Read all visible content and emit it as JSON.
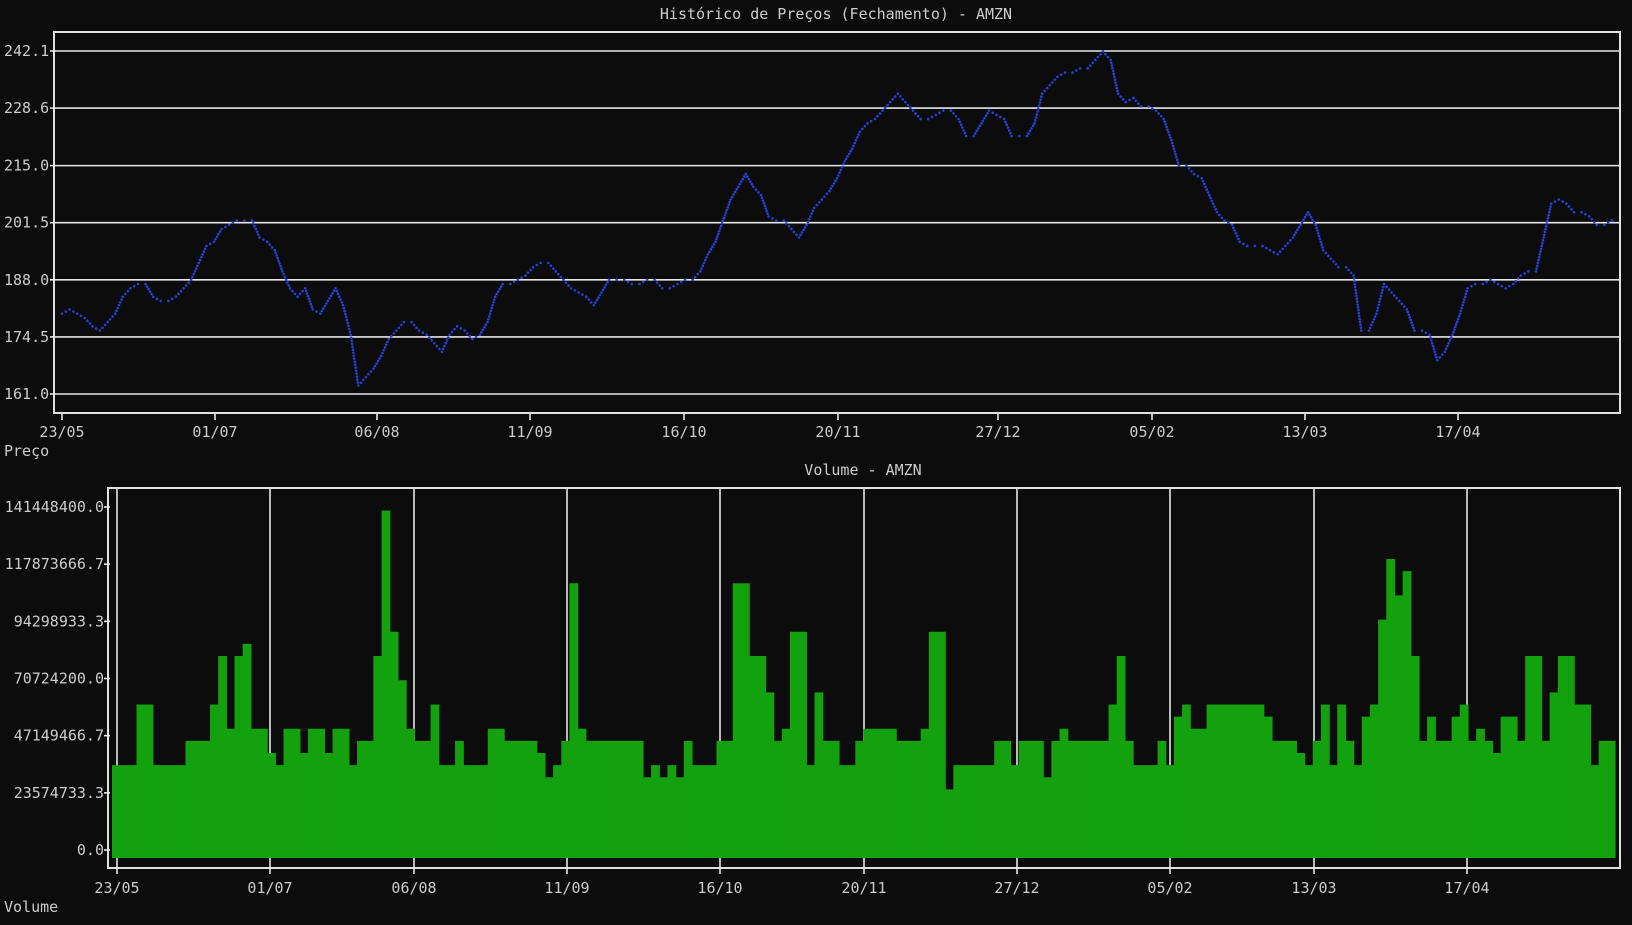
{
  "chart_data": [
    {
      "type": "line",
      "title": "Histórico de Preços (Fechamento) - AMZN",
      "ylabel": "Preço",
      "ylim": [
        161.0,
        242.1
      ],
      "y_ticks": [
        "242.1",
        "228.6",
        "215.0",
        "201.5",
        "188.0",
        "174.5",
        "161.0"
      ],
      "x_ticks": [
        "23/05",
        "01/07",
        "06/08",
        "11/09",
        "16/10",
        "20/11",
        "27/12",
        "05/02",
        "13/03",
        "17/04"
      ],
      "grid": "horizontal",
      "series": [
        {
          "color": "#2a3fd6",
          "values": [
            180,
            181,
            180,
            179,
            177,
            176,
            178,
            180,
            184,
            186,
            187,
            187,
            184,
            183,
            183,
            184,
            186,
            188,
            192,
            196,
            197,
            200,
            201,
            202,
            202,
            202,
            198,
            197,
            195,
            190,
            186,
            184,
            186,
            181,
            180,
            183,
            186,
            182,
            175,
            163,
            165,
            167,
            170,
            174,
            176,
            178,
            178,
            176,
            175,
            173,
            171,
            175,
            177,
            176,
            174,
            175,
            178,
            184,
            187,
            187,
            188,
            189,
            191,
            192,
            192,
            190,
            188,
            186,
            185,
            184,
            182,
            185,
            188,
            188,
            188,
            187,
            187,
            188,
            188,
            186,
            186,
            187,
            188,
            188,
            190,
            194,
            197,
            202,
            207,
            210,
            213,
            210,
            208,
            203,
            202,
            202,
            200,
            198,
            201,
            205,
            207,
            209,
            212,
            216,
            219,
            223,
            225,
            226,
            228,
            230,
            232,
            230,
            228,
            226,
            226,
            227,
            228,
            228,
            226,
            222,
            222,
            225,
            228,
            227,
            226,
            222,
            222,
            222,
            225,
            232,
            234,
            236,
            237,
            237,
            238,
            238,
            240,
            242,
            240,
            232,
            230,
            231,
            229,
            229,
            228,
            226,
            221,
            215,
            215,
            213,
            212,
            208,
            204,
            202,
            201,
            197,
            196,
            196,
            196,
            195,
            194,
            196,
            198,
            201,
            204,
            201,
            195,
            193,
            191,
            191,
            189,
            176,
            176,
            180,
            187,
            185,
            183,
            181,
            176,
            176,
            175,
            169,
            171,
            175,
            180,
            186,
            187,
            187,
            188,
            187,
            186,
            187,
            189,
            190,
            190,
            198,
            206,
            207,
            206,
            204,
            204,
            203,
            201,
            201,
            202
          ]
        }
      ]
    },
    {
      "type": "bar",
      "title": "Volume - AMZN",
      "ylabel": "Volume",
      "ylim": [
        0,
        141448400
      ],
      "y_ticks": [
        "141448400.0",
        "117873666.7",
        "94298933.3",
        "70724200.0",
        "47149466.7",
        "23574733.3",
        "0.0"
      ],
      "x_ticks": [
        "23/05",
        "01/07",
        "06/08",
        "11/09",
        "16/10",
        "20/11",
        "27/12",
        "05/02",
        "13/03",
        "17/04"
      ],
      "grid": "vertical",
      "series": [
        {
          "color": "#13a10e",
          "values": [
            35,
            35,
            35,
            60,
            60,
            35,
            35,
            35,
            35,
            45,
            45,
            45,
            60,
            80,
            50,
            80,
            85,
            50,
            50,
            40,
            35,
            50,
            50,
            40,
            50,
            50,
            40,
            50,
            50,
            35,
            45,
            45,
            80,
            140,
            90,
            70,
            50,
            45,
            45,
            60,
            35,
            35,
            45,
            35,
            35,
            35,
            50,
            50,
            45,
            45,
            45,
            45,
            40,
            30,
            35,
            45,
            110,
            50,
            45,
            45,
            45,
            45,
            45,
            45,
            45,
            30,
            35,
            30,
            35,
            30,
            45,
            35,
            35,
            35,
            45,
            45,
            110,
            110,
            80,
            80,
            65,
            45,
            50,
            90,
            90,
            35,
            65,
            45,
            45,
            35,
            35,
            45,
            50,
            50,
            50,
            50,
            45,
            45,
            45,
            50,
            90,
            90,
            25,
            35,
            35,
            35,
            35,
            35,
            45,
            45,
            35,
            45,
            45,
            45,
            30,
            45,
            50,
            45,
            45,
            45,
            45,
            45,
            60,
            80,
            45,
            35,
            35,
            35,
            45,
            35,
            55,
            60,
            50,
            50,
            60,
            60,
            60,
            60,
            60,
            60,
            60,
            55,
            45,
            45,
            45,
            40,
            35,
            45,
            60,
            35,
            60,
            45,
            35,
            55,
            60,
            95,
            120,
            105,
            115,
            80,
            45,
            55,
            45,
            45,
            55,
            60,
            45,
            50,
            45,
            40,
            55,
            55,
            45,
            80,
            80,
            45,
            65,
            80,
            80,
            60,
            60,
            35,
            45,
            45
          ]
        }
      ]
    }
  ]
}
